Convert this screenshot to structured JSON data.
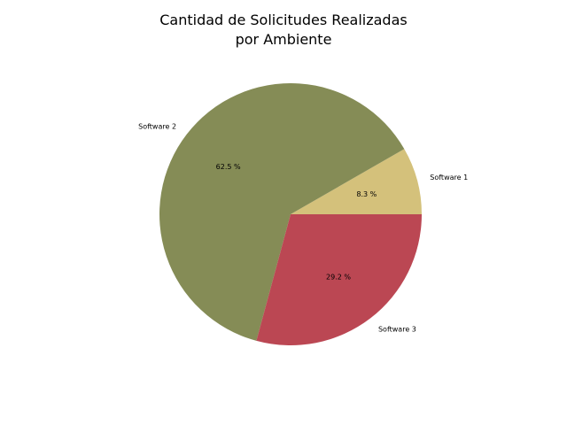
{
  "chart_data": {
    "type": "pie",
    "title_lines": [
      "Cantidad de Solicitudes Realizadas",
      "por Ambiente"
    ],
    "categories": [
      "Software 1",
      "Software 2",
      "Software 3"
    ],
    "values": [
      8.3,
      62.5,
      29.2
    ],
    "pct_labels": [
      "8.3 %",
      "62.5 %",
      "29.2 %"
    ],
    "colors": [
      "#d4c17b",
      "#858c56",
      "#bb4753"
    ],
    "start_angle_deg": 0,
    "direction": "counterclockwise",
    "legend": "none"
  }
}
